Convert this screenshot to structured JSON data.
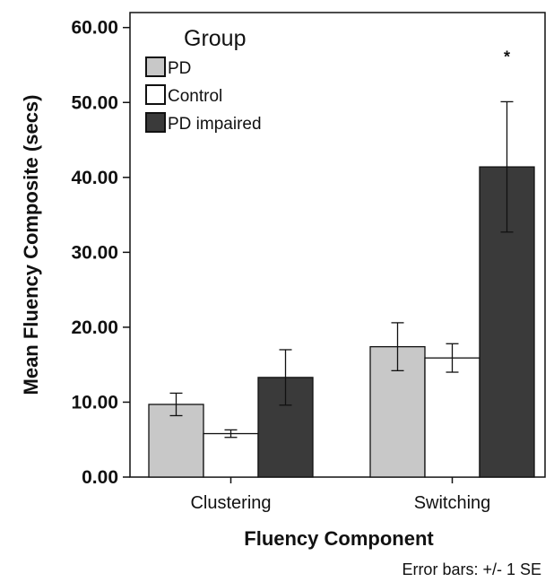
{
  "chart_data": {
    "type": "bar",
    "xlabel": "Fluency Component",
    "ylabel": "Mean Fluency Composite (secs)",
    "ylim": [
      0,
      62
    ],
    "yticks": [
      "0.00",
      "10.00",
      "20.00",
      "30.00",
      "40.00",
      "50.00",
      "60.00"
    ],
    "ytick_values": [
      0,
      10,
      20,
      30,
      40,
      50,
      60
    ],
    "categories": [
      "Clustering",
      "Switching"
    ],
    "legend_title": "Group",
    "legend_position": "top-left",
    "grid": false,
    "error_bar_note": "Error bars: +/- 1 SE",
    "series": [
      {
        "name": "PD",
        "color": "#c8c8c8",
        "values": [
          9.7,
          17.4
        ],
        "errors": [
          1.5,
          3.2
        ]
      },
      {
        "name": "Control",
        "color": "#ffffff",
        "values": [
          5.8,
          15.9
        ],
        "errors": [
          0.5,
          1.9
        ]
      },
      {
        "name": "PD impaired",
        "color": "#3a3a3a",
        "values": [
          13.3,
          41.4
        ],
        "errors": [
          3.7,
          8.7
        ]
      }
    ],
    "annotations": [
      {
        "text": "*",
        "category": "Switching",
        "series": "PD impaired"
      }
    ]
  }
}
